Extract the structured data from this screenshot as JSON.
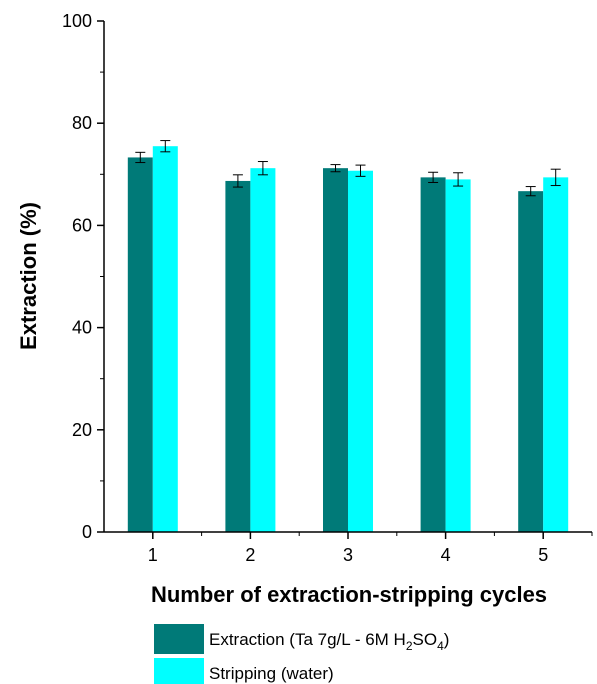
{
  "chart_data": {
    "type": "bar",
    "categories": [
      "1",
      "2",
      "3",
      "4",
      "5"
    ],
    "series": [
      {
        "name": "Extraction (Ta 7g/L - 6M H2SO4)",
        "legend": {
          "prefix": "Extraction (Ta 7g/L - 6M H",
          "sub1": "2",
          "mid": "SO",
          "sub2": "4",
          "suffix": ")"
        },
        "color": "#007a78",
        "values": [
          73.3,
          68.7,
          71.2,
          69.4,
          66.7
        ],
        "errors": [
          1.0,
          1.2,
          0.7,
          1.0,
          0.9
        ]
      },
      {
        "name": "Stripping (water)",
        "legend": {
          "prefix": "Stripping (water)",
          "sub1": "",
          "mid": "",
          "sub2": "",
          "suffix": ""
        },
        "color": "#00ffff",
        "values": [
          75.5,
          71.2,
          70.7,
          69.0,
          69.4
        ],
        "errors": [
          1.1,
          1.3,
          1.1,
          1.3,
          1.6
        ]
      }
    ],
    "xlabel": "Number of extraction-stripping cycles",
    "ylabel": "Extraction (%)",
    "ylim": [
      0,
      100
    ],
    "yticks": [
      "0",
      "20",
      "40",
      "60",
      "80",
      "100"
    ],
    "grid": false,
    "legend_position": "bottom"
  }
}
